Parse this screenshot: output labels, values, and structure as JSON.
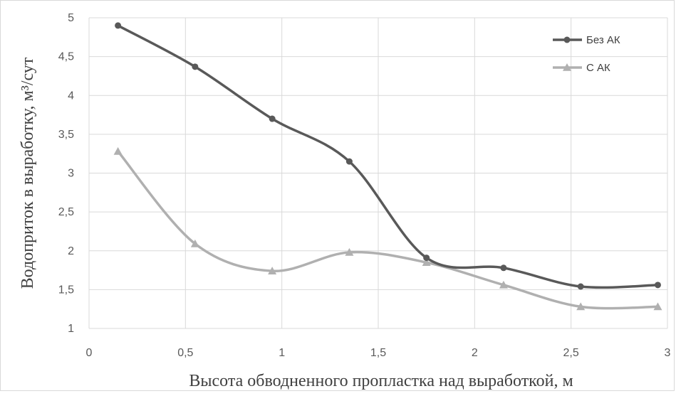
{
  "chart_data": {
    "type": "line",
    "xlabel": "Высота обводненного пропластка над выработкой, м",
    "ylabel": "Водоприток в выработку, м³/сут",
    "xlim": [
      0,
      3
    ],
    "ylim": [
      1,
      5
    ],
    "x_ticks": [
      "0",
      "0,5",
      "1",
      "1,5",
      "2",
      "2,5",
      "3"
    ],
    "y_ticks": [
      "1",
      "1,5",
      "2",
      "2,5",
      "3",
      "3,5",
      "4",
      "4,5",
      "5"
    ],
    "grid": true,
    "legend_position": "top-right",
    "x": [
      0.15,
      0.55,
      0.95,
      1.35,
      1.75,
      2.15,
      2.55,
      2.95
    ],
    "series": [
      {
        "name": "Без АК",
        "marker": "circle",
        "color": "#595959",
        "values": [
          4.9,
          4.37,
          3.7,
          3.15,
          1.91,
          1.78,
          1.54,
          1.56
        ]
      },
      {
        "name": "С АК",
        "marker": "triangle",
        "color": "#b0b0b0",
        "values": [
          3.28,
          2.09,
          1.74,
          1.98,
          1.85,
          1.56,
          1.28,
          1.28
        ]
      }
    ]
  }
}
